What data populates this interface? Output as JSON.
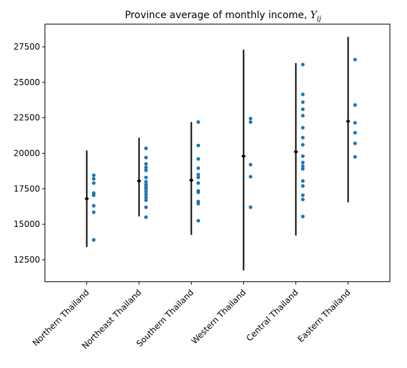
{
  "chart_data": {
    "type": "scatter",
    "title": "Province average of monthly income, ",
    "title_math": "Y",
    "title_math_sub": "ij",
    "xlabel": "",
    "ylabel": "",
    "categories": [
      "Northern Thailand",
      "Northeast Thailand",
      "Southern Thailand",
      "Western Thailand",
      "Central Thailand",
      "Eastern Thailand"
    ],
    "ylim": [
      10950,
      29100
    ],
    "yticks": [
      12500,
      15000,
      17500,
      20000,
      22500,
      25000,
      27500
    ],
    "ytick_labels": [
      "12500",
      "15000",
      "17500",
      "20000",
      "22500",
      "25000",
      "27500"
    ],
    "grid": false,
    "point_color": "#1f77b4",
    "summary_color": "#000000",
    "groups": [
      {
        "category": "Northern Thailand",
        "mean": 16800,
        "lower": 13400,
        "upper": 20200,
        "points": [
          13900,
          15850,
          16300,
          17050,
          17200,
          17900,
          18200,
          18450
        ]
      },
      {
        "category": "Northeast Thailand",
        "mean": 18050,
        "lower": 15550,
        "upper": 21100,
        "points": [
          15500,
          16200,
          16700,
          16900,
          17100,
          17300,
          17500,
          17650,
          17800,
          18000,
          18300,
          18800,
          19000,
          19250,
          19700,
          20350
        ]
      },
      {
        "category": "Southern Thailand",
        "mean": 18100,
        "lower": 14250,
        "upper": 22200,
        "points": [
          15250,
          16450,
          16600,
          17250,
          17350,
          17900,
          18300,
          18500,
          18950,
          19600,
          20550,
          22200
        ]
      },
      {
        "category": "Western Thailand",
        "mean": 19800,
        "lower": 11750,
        "upper": 27300,
        "points": [
          16200,
          18350,
          19200,
          22200,
          22450
        ]
      },
      {
        "category": "Central Thailand",
        "mean": 20100,
        "lower": 14200,
        "upper": 26350,
        "points": [
          15550,
          16750,
          17050,
          17700,
          18050,
          18900,
          19100,
          19350,
          19800,
          20600,
          21100,
          21800,
          22650,
          23100,
          23600,
          24150,
          26250
        ]
      },
      {
        "category": "Eastern Thailand",
        "mean": 22250,
        "lower": 16550,
        "upper": 28200,
        "points": [
          19750,
          20700,
          21450,
          22150,
          23400,
          26600
        ]
      }
    ]
  }
}
